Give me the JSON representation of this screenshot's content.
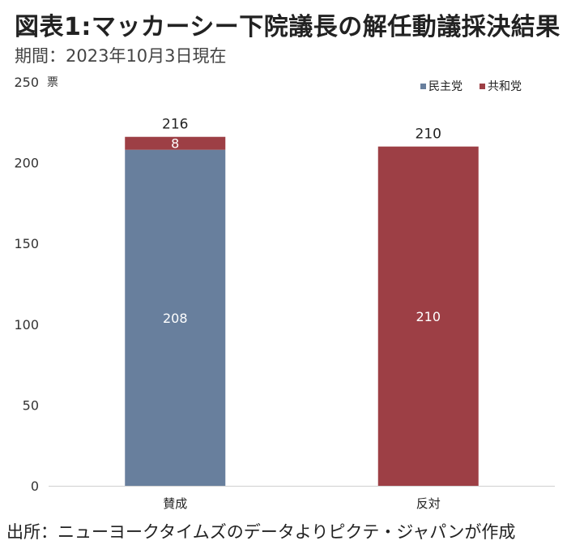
{
  "title": "図表1:マッカーシー下院議長の解任動議採決結果",
  "subtitle": "期間：2023年10月3日現在",
  "source": "出所：ニューヨークタイムズのデータよりピクテ・ジャパンが作成",
  "colors": {
    "democrat": "#687f9d",
    "republican": "#9d3f45"
  },
  "chart_data": {
    "type": "bar",
    "stacked": true,
    "categories": [
      "賛成",
      "反対"
    ],
    "series": [
      {
        "name": "民主党",
        "values": [
          208,
          0
        ],
        "color": "#687f9d"
      },
      {
        "name": "共和党",
        "values": [
          8,
          210
        ],
        "color": "#9d3f45"
      }
    ],
    "totals": [
      216,
      210
    ],
    "ylim": [
      0,
      250
    ],
    "yticks": [
      "0",
      "50",
      "100",
      "150",
      "200",
      "250"
    ],
    "ylabel": "票",
    "legend_position": "top-right",
    "grid": false
  }
}
